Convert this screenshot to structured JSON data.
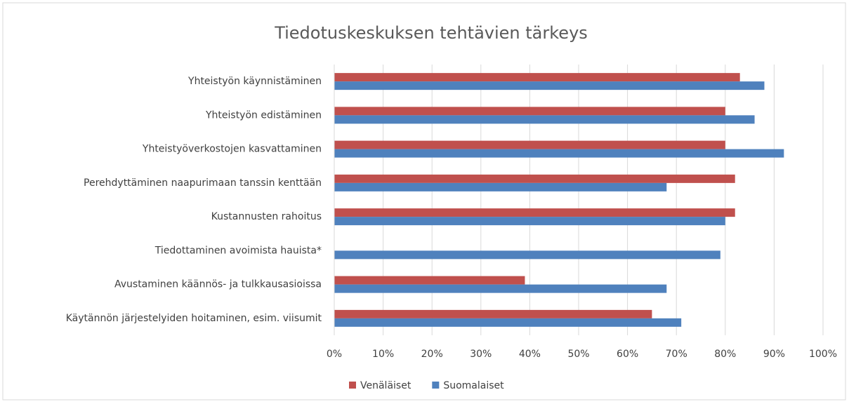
{
  "chart_data": {
    "type": "hbar",
    "title": "Tiedotuskeskuksen tehtävien tärkeys",
    "categories": [
      "Yhteistyön käynnistäminen",
      "Yhteistyön edistäminen",
      "Yhteistyöverkostojen kasvattaminen",
      "Perehdyttäminen naapurimaan tanssin kenttään",
      "Kustannusten rahoitus",
      "Tiedottaminen avoimista hauista*",
      "Avustaminen käännös- ja tulkkausasioissa",
      "Käytännön järjestelyiden hoitaminen, esim. viisumit"
    ],
    "series": [
      {
        "name": "Venäläiset",
        "color": "#c0504d",
        "values": [
          83,
          80,
          80,
          82,
          82,
          null,
          39,
          65
        ]
      },
      {
        "name": "Suomalaiset",
        "color": "#4f81bd",
        "values": [
          88,
          86,
          92,
          68,
          80,
          79,
          68,
          71
        ]
      }
    ],
    "xlim": [
      0,
      100
    ],
    "xticks": [
      {
        "value": 0,
        "label": "0%"
      },
      {
        "value": 10,
        "label": "10%"
      },
      {
        "value": 20,
        "label": "20%"
      },
      {
        "value": 30,
        "label": "30%"
      },
      {
        "value": 40,
        "label": "40%"
      },
      {
        "value": 50,
        "label": "50%"
      },
      {
        "value": 60,
        "label": "60%"
      },
      {
        "value": 70,
        "label": "70%"
      },
      {
        "value": 80,
        "label": "80%"
      },
      {
        "value": 90,
        "label": "90%"
      },
      {
        "value": 100,
        "label": "100%"
      }
    ],
    "grid": true,
    "legend": "bottom"
  }
}
